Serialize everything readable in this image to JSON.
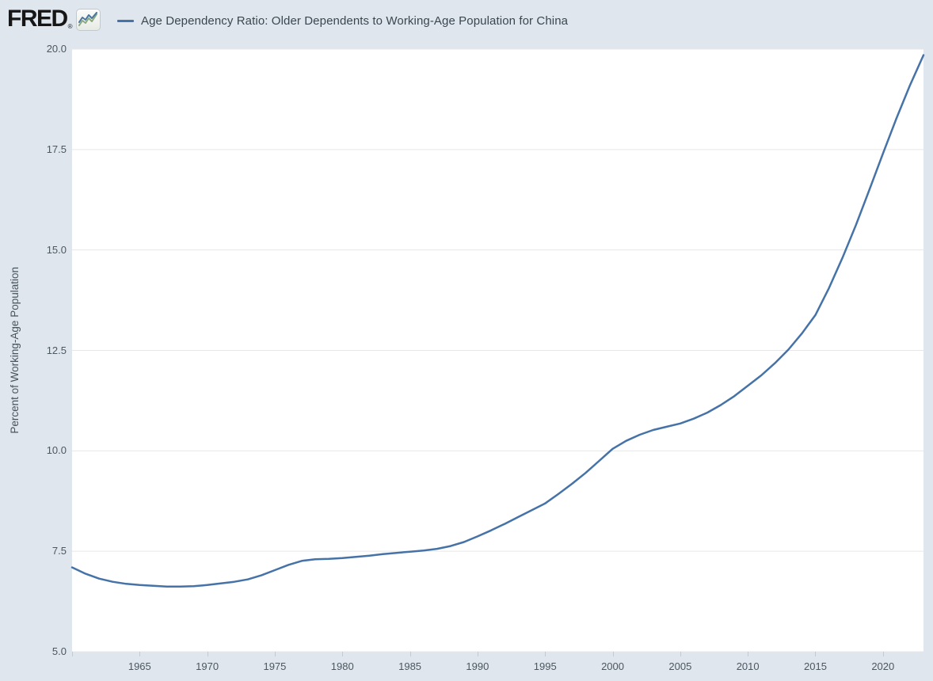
{
  "header": {
    "logo_text": "FRED",
    "logo_registered": "®",
    "logo_icon": "fred-chart-icon"
  },
  "colors": {
    "page_background": "#dfe6ed",
    "plot_background": "#ffffff",
    "gridline": "#e7e7e7",
    "series_line": "#4572a7",
    "tick_mark": "#c3cad0",
    "tick_text": "#4d5760"
  },
  "chart_data": {
    "type": "line",
    "title": "Age Dependency Ratio: Older Dependents to Working-Age Population for China",
    "xlabel": "",
    "ylabel": "Percent of Working-Age Population",
    "x_range": [
      1960,
      2023
    ],
    "ylim": [
      5.0,
      20.0
    ],
    "y_ticks": [
      5.0,
      7.5,
      10.0,
      12.5,
      15.0,
      17.5,
      20.0
    ],
    "x_ticks": [
      1965,
      1970,
      1975,
      1980,
      1985,
      1990,
      1995,
      2000,
      2005,
      2010,
      2015,
      2020
    ],
    "x_edge_ticks": [
      1960
    ],
    "grid": "horizontal",
    "legend_position": "top-left",
    "line_color": "#4572a7",
    "series": [
      {
        "name": "Age Dependency Ratio: Older Dependents to Working-Age Population for China",
        "start_year": 1960,
        "frequency": "annual",
        "values": [
          7.1,
          6.94,
          6.82,
          6.74,
          6.69,
          6.66,
          6.64,
          6.62,
          6.62,
          6.63,
          6.66,
          6.7,
          6.74,
          6.8,
          6.9,
          7.03,
          7.16,
          7.26,
          7.3,
          7.31,
          7.33,
          7.36,
          7.39,
          7.43,
          7.46,
          7.49,
          7.52,
          7.56,
          7.63,
          7.73,
          7.87,
          8.02,
          8.18,
          8.35,
          8.52,
          8.69,
          8.93,
          9.18,
          9.45,
          9.75,
          10.05,
          10.25,
          10.4,
          10.52,
          10.6,
          10.68,
          10.8,
          10.95,
          11.14,
          11.36,
          11.62,
          11.88,
          12.18,
          12.52,
          12.92,
          13.38,
          14.05,
          14.8,
          15.62,
          16.5,
          17.4,
          18.28,
          19.1,
          19.85
        ]
      }
    ]
  }
}
